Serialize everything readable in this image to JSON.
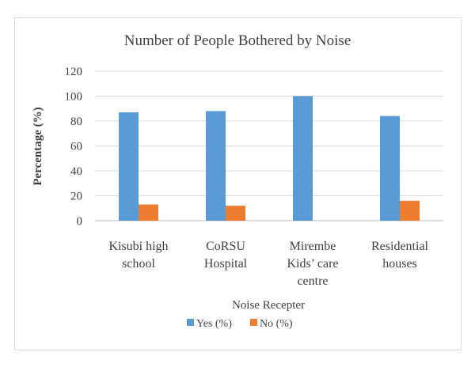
{
  "chart_data": {
    "type": "bar",
    "title": "Number of People Bothered by Noise",
    "xlabel": "Noise Recepter",
    "ylabel": "Percentage (%)",
    "ylim": [
      0,
      120
    ],
    "yticks": [
      0,
      20,
      40,
      60,
      80,
      100,
      120
    ],
    "grid": true,
    "legend_position": "bottom",
    "categories": [
      [
        "Kisubi high",
        "school"
      ],
      [
        "CoRSU",
        "Hospital"
      ],
      [
        "Mirembe",
        "Kids’ care",
        "centre"
      ],
      [
        "Residential",
        "houses"
      ]
    ],
    "series": [
      {
        "name": "Yes (%)",
        "color": "#5b9bd5",
        "values": [
          87,
          88,
          100,
          84
        ]
      },
      {
        "name": "No (%)",
        "color": "#ed7d31",
        "values": [
          13,
          12,
          0,
          16
        ]
      }
    ]
  }
}
